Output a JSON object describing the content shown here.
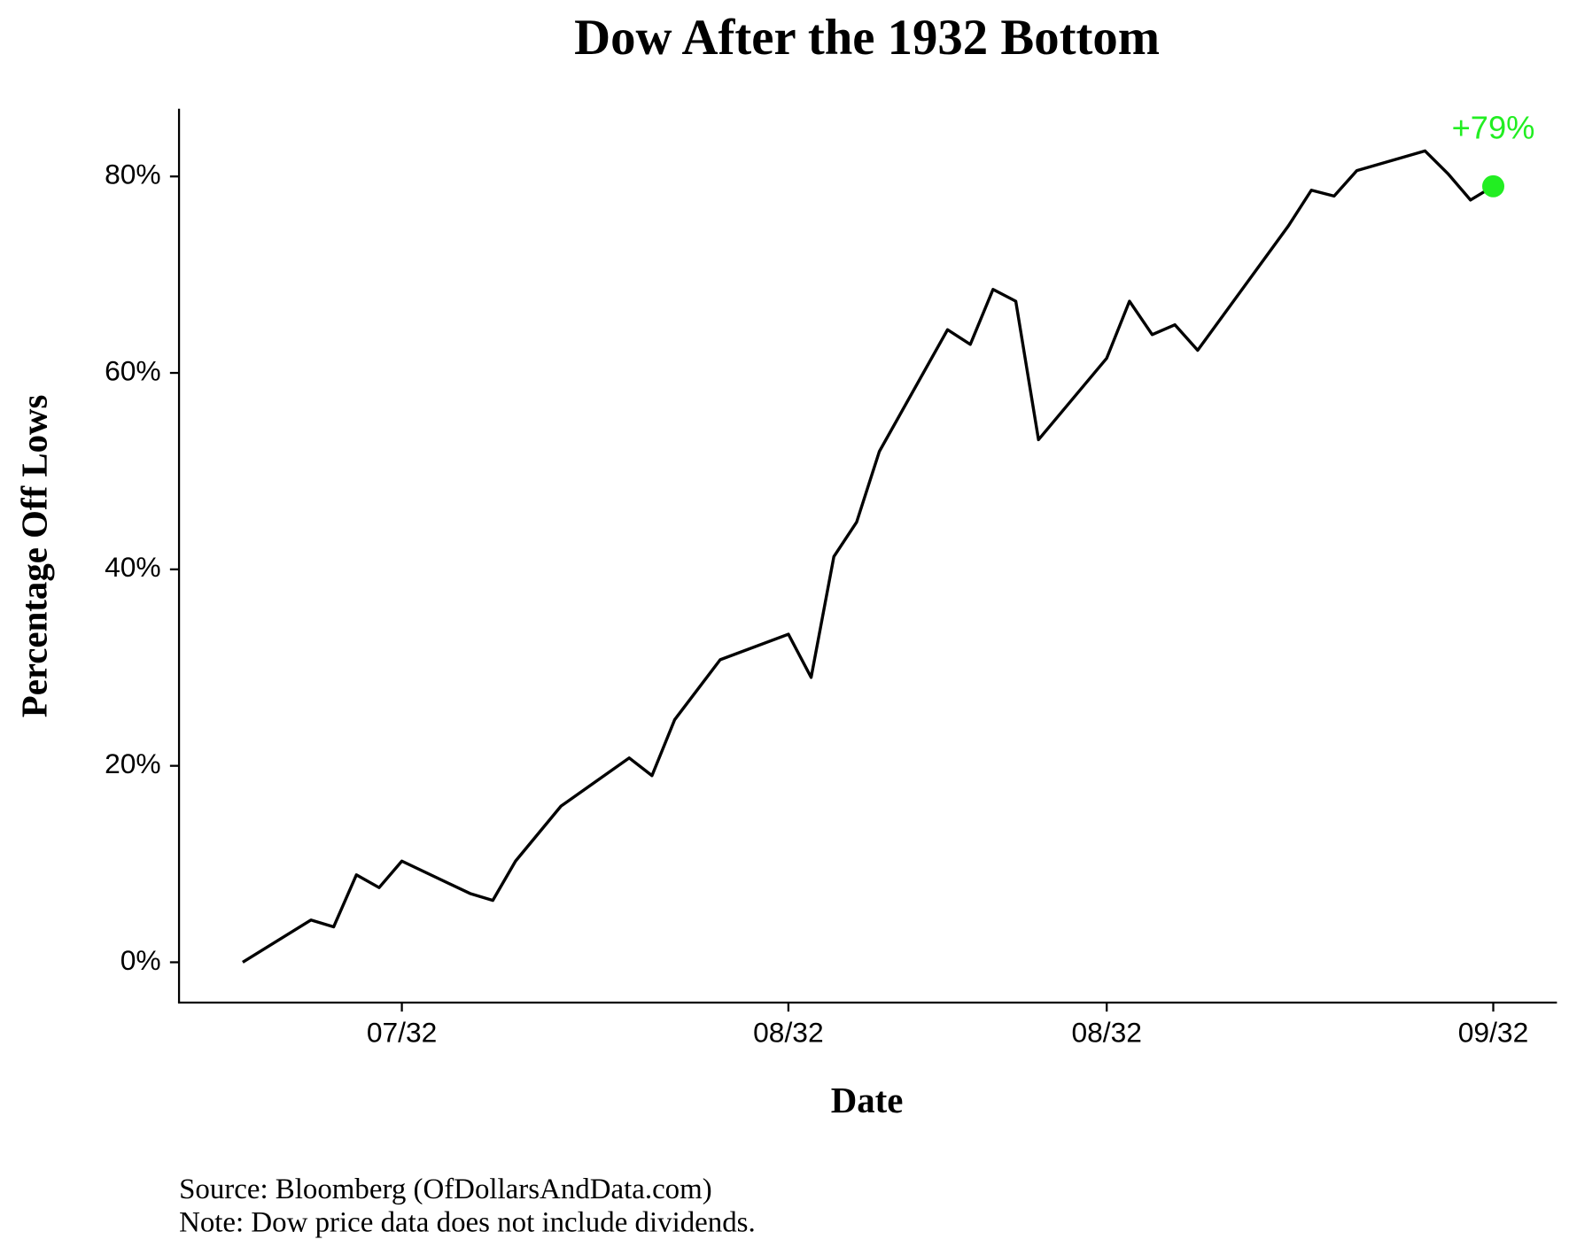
{
  "chart_data": {
    "type": "line",
    "title": "Dow After the 1932 Bottom",
    "x_label": "Date",
    "y_label": "Percentage Off Lows",
    "notes": [
      "Source: Bloomberg (OfDollarsAndData.com)",
      "Note: Dow price data does not include dividends."
    ],
    "x": [
      0,
      3,
      4,
      5,
      6,
      7,
      10,
      11,
      12,
      14,
      17,
      18,
      19,
      21,
      24,
      25,
      26,
      27,
      28,
      31,
      32,
      33,
      34,
      35,
      38,
      39,
      40,
      41,
      42,
      46,
      47,
      48,
      49,
      52,
      53,
      54,
      55
    ],
    "values": [
      0,
      4.3,
      3.6,
      8.9,
      7.6,
      10.3,
      7,
      6.3,
      10.3,
      15.9,
      20.8,
      19,
      24.7,
      30.8,
      33.4,
      29,
      41.3,
      44.8,
      52,
      64.4,
      62.9,
      68.5,
      67.3,
      53.2,
      61.5,
      67.3,
      63.9,
      64.9,
      62.3,
      75,
      78.6,
      78,
      80.6,
      82.6,
      80.3,
      77.6,
      79
    ],
    "color": "#000000",
    "end_label": "+79%",
    "end_color": "#22ee22",
    "xlim": [
      -2.8,
      57.8
    ],
    "xticks": [
      {
        "value": 7,
        "label": "07/32"
      },
      {
        "value": 24,
        "label": "08/32"
      },
      {
        "value": 38,
        "label": "08/32"
      },
      {
        "value": 55,
        "label": "09/32"
      }
    ],
    "ylim": [
      -4.1,
      86.9
    ],
    "yticks": [
      {
        "value": 0,
        "label": "0%"
      },
      {
        "value": 20,
        "label": "20%"
      },
      {
        "value": 40,
        "label": "40%"
      },
      {
        "value": 60,
        "label": "60%"
      },
      {
        "value": 80,
        "label": "80%"
      }
    ],
    "grid": false
  }
}
